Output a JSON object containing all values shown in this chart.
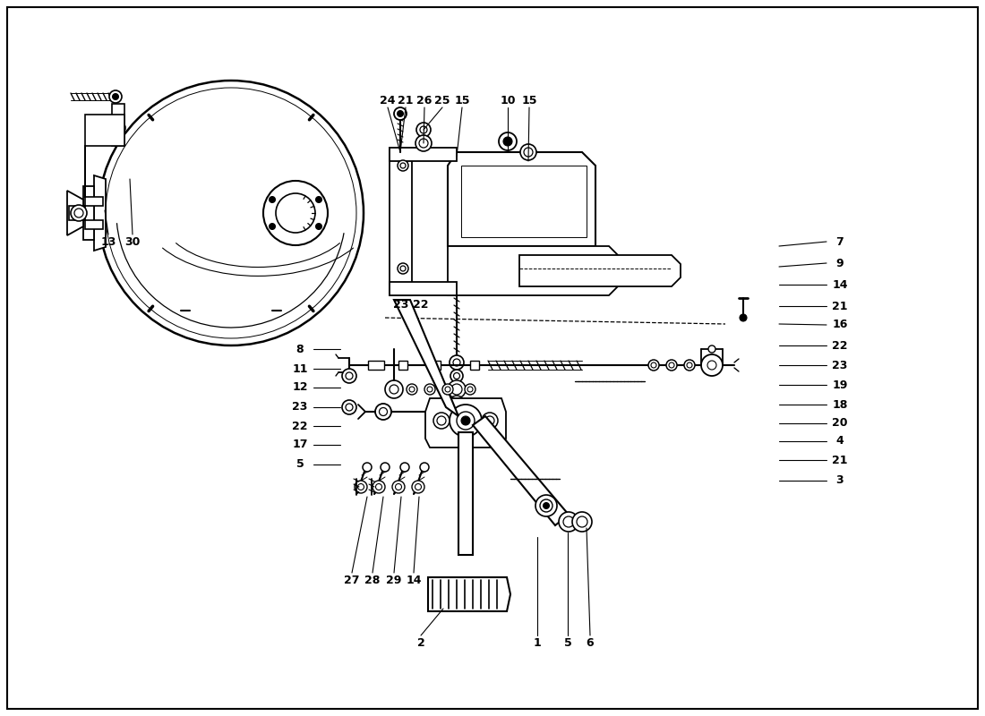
{
  "bg": "#ffffff",
  "lc": "#000000",
  "figsize": [
    11.0,
    8.0
  ],
  "dpi": 100,
  "lw_main": 1.3,
  "lw_thin": 0.8,
  "lw_thick": 2.0,
  "fs_label": 9,
  "top_labels": [
    [
      "24",
      433,
      112
    ],
    [
      "21",
      453,
      112
    ],
    [
      "26",
      474,
      112
    ],
    [
      "25",
      494,
      112
    ],
    [
      "15",
      516,
      112
    ],
    [
      "10",
      567,
      112
    ],
    [
      "15",
      591,
      112
    ]
  ],
  "right_labels": [
    [
      "7",
      938,
      270
    ],
    [
      "9",
      938,
      294
    ],
    [
      "14",
      938,
      318
    ],
    [
      "21",
      938,
      342
    ],
    [
      "16",
      938,
      363
    ],
    [
      "22",
      938,
      386
    ],
    [
      "23",
      938,
      408
    ],
    [
      "19",
      938,
      430
    ],
    [
      "18",
      938,
      452
    ],
    [
      "20",
      938,
      473
    ],
    [
      "4",
      938,
      493
    ],
    [
      "21",
      938,
      514
    ],
    [
      "3",
      938,
      537
    ]
  ],
  "left_labels": [
    [
      "8",
      335,
      390
    ],
    [
      "11",
      335,
      412
    ],
    [
      "12",
      335,
      433
    ],
    [
      "23",
      335,
      455
    ],
    [
      "22",
      335,
      476
    ],
    [
      "17",
      335,
      497
    ],
    [
      "5",
      335,
      519
    ]
  ],
  "labels_23_22": [
    [
      "23",
      448,
      340
    ],
    [
      "22",
      470,
      340
    ]
  ],
  "labels_13_30": [
    [
      "13",
      121,
      270
    ],
    [
      "30",
      148,
      270
    ]
  ],
  "bottom_labels": [
    [
      "27",
      393,
      648
    ],
    [
      "28",
      416,
      648
    ],
    [
      "29",
      440,
      648
    ],
    [
      "14",
      462,
      648
    ],
    [
      "2",
      470,
      718
    ],
    [
      "1",
      600,
      718
    ],
    [
      "5",
      634,
      718
    ],
    [
      "6",
      659,
      718
    ]
  ]
}
